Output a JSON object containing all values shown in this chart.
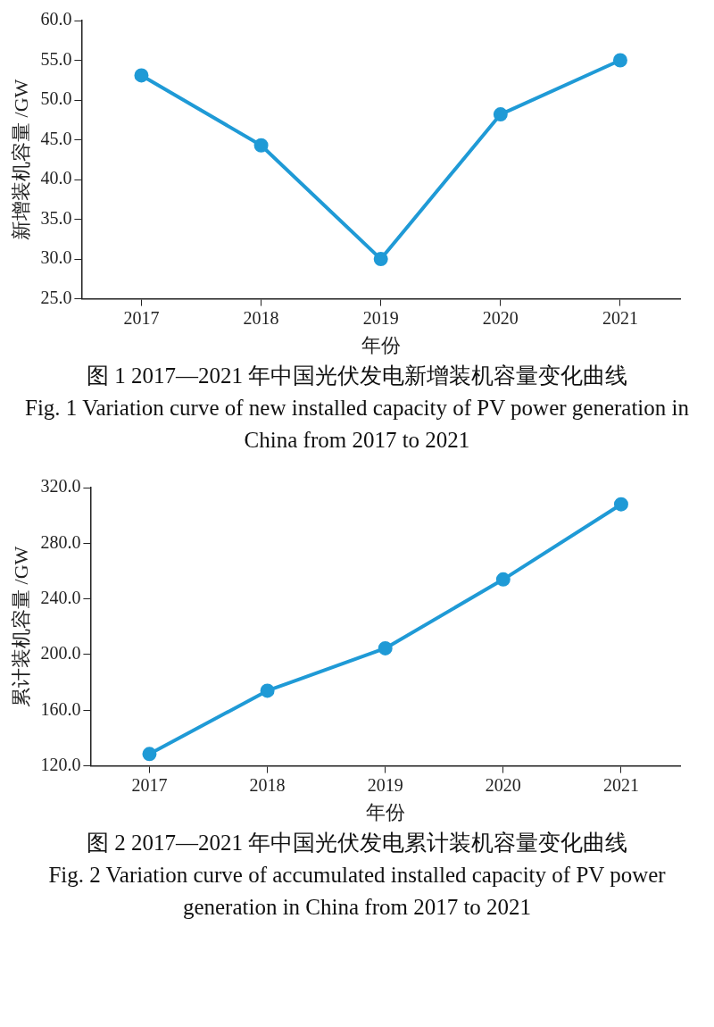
{
  "chart_data": [
    {
      "type": "line",
      "title": "图 1 2017—2021 年中国光伏发电新增装机容量变化曲线",
      "subtitle": "Fig. 1  Variation curve of new installed capacity of PV power generation in China from 2017 to 2021",
      "xlabel": "年份",
      "ylabel": "新增装机容量 /GW",
      "categories": [
        "2017",
        "2018",
        "2019",
        "2020",
        "2021"
      ],
      "series": [
        {
          "color": "#1f9ad6",
          "values": [
            53.1,
            44.3,
            30.0,
            48.2,
            55.0
          ]
        }
      ],
      "ylim": [
        25,
        60
      ],
      "yticks": [
        {
          "value": 25,
          "label": "25.0"
        },
        {
          "value": 30,
          "label": "30.0"
        },
        {
          "value": 35,
          "label": "35.0"
        },
        {
          "value": 40,
          "label": "40.0"
        },
        {
          "value": 45,
          "label": "45.0"
        },
        {
          "value": 50,
          "label": "50.0"
        },
        {
          "value": 55,
          "label": "55.0"
        },
        {
          "value": 60,
          "label": "60.0"
        }
      ],
      "grid": false,
      "legend": false,
      "marker": "circle",
      "line_style": "solid"
    },
    {
      "type": "line",
      "title": "图 2 2017—2021 年中国光伏发电累计装机容量变化曲线",
      "subtitle": "Fig. 2  Variation curve of accumulated installed capacity of PV power generation in China from 2017 to 2021",
      "xlabel": "年份",
      "ylabel": "累计装机容量 /GW",
      "categories": [
        "2017",
        "2018",
        "2019",
        "2020",
        "2021"
      ],
      "series": [
        {
          "color": "#1f9ad6",
          "values": [
            128.5,
            174,
            204.5,
            254,
            308
          ]
        }
      ],
      "ylim": [
        120,
        320
      ],
      "yticks": [
        {
          "value": 120,
          "label": "120.0"
        },
        {
          "value": 160,
          "label": "160.0"
        },
        {
          "value": 200,
          "label": "200.0"
        },
        {
          "value": 240,
          "label": "240.0"
        },
        {
          "value": 280,
          "label": "280.0"
        },
        {
          "value": 320,
          "label": "320.0"
        }
      ],
      "grid": false,
      "legend": false,
      "marker": "circle",
      "line_style": "solid"
    }
  ]
}
